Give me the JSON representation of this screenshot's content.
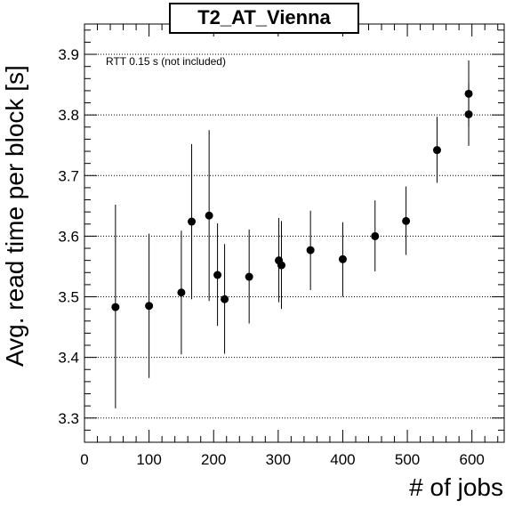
{
  "chart_data": {
    "type": "scatter",
    "title": "T2_AT_Vienna",
    "xlabel": "# of jobs",
    "ylabel": "Avg. read time per block [s]",
    "annotation": "RTT 0.15 s (not included)",
    "xlim": [
      0,
      650
    ],
    "ylim": [
      3.26,
      3.95
    ],
    "x_major_ticks": [
      0,
      100,
      200,
      300,
      400,
      500,
      600
    ],
    "y_major_ticks": [
      3.3,
      3.4,
      3.5,
      3.6,
      3.7,
      3.8,
      3.9
    ],
    "y_gridlines": "dotted at major ticks",
    "grid": true,
    "marker": "filled circle",
    "series": [
      {
        "points": [
          {
            "x": 48,
            "y": 3.483,
            "ylow": 3.316,
            "yhigh": 3.652
          },
          {
            "x": 100,
            "y": 3.485,
            "ylow": 3.366,
            "yhigh": 3.604
          },
          {
            "x": 150,
            "y": 3.507,
            "ylow": 3.405,
            "yhigh": 3.609
          },
          {
            "x": 166,
            "y": 3.624,
            "ylow": 3.496,
            "yhigh": 3.752
          },
          {
            "x": 193,
            "y": 3.634,
            "ylow": 3.493,
            "yhigh": 3.775
          },
          {
            "x": 206,
            "y": 3.536,
            "ylow": 3.452,
            "yhigh": 3.621
          },
          {
            "x": 217,
            "y": 3.496,
            "ylow": 3.406,
            "yhigh": 3.587
          },
          {
            "x": 255,
            "y": 3.533,
            "ylow": 3.456,
            "yhigh": 3.611
          },
          {
            "x": 301,
            "y": 3.56,
            "ylow": 3.491,
            "yhigh": 3.63
          },
          {
            "x": 305,
            "y": 3.552,
            "ylow": 3.48,
            "yhigh": 3.625
          },
          {
            "x": 350,
            "y": 3.577,
            "ylow": 3.511,
            "yhigh": 3.642
          },
          {
            "x": 400,
            "y": 3.562,
            "ylow": 3.5,
            "yhigh": 3.623
          },
          {
            "x": 450,
            "y": 3.6,
            "ylow": 3.542,
            "yhigh": 3.659
          },
          {
            "x": 498,
            "y": 3.625,
            "ylow": 3.569,
            "yhigh": 3.682
          },
          {
            "x": 546,
            "y": 3.742,
            "ylow": 3.688,
            "yhigh": 3.797
          },
          {
            "x": 595,
            "y": 3.801,
            "ylow": 3.749,
            "yhigh": 3.853
          },
          {
            "x": 595,
            "y": 3.835,
            "ylow": 3.781,
            "yhigh": 3.89
          }
        ]
      }
    ]
  }
}
